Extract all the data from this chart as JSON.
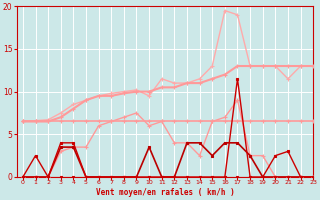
{
  "xlabel": "Vent moyen/en rafales ( km/h )",
  "xlabel_color": "#cc0000",
  "background_color": "#cce8e8",
  "grid_color": "#ffffff",
  "xlim": [
    -0.5,
    23
  ],
  "ylim": [
    0,
    20
  ],
  "yticks": [
    0,
    5,
    10,
    15,
    20
  ],
  "xticks": [
    0,
    1,
    2,
    3,
    4,
    5,
    6,
    7,
    8,
    9,
    10,
    11,
    12,
    13,
    14,
    15,
    16,
    17,
    18,
    19,
    20,
    21,
    22,
    23
  ],
  "series": [
    {
      "x": [
        0,
        1,
        2,
        3,
        4,
        5,
        6,
        7,
        8,
        9,
        10,
        11,
        12,
        13,
        14,
        15,
        16,
        17,
        18,
        19,
        20,
        21,
        22,
        23
      ],
      "y": [
        0,
        0,
        0,
        0,
        0,
        0,
        0,
        0,
        0,
        0,
        0,
        0,
        0,
        0,
        0,
        0,
        0,
        0,
        0,
        0,
        0,
        0,
        0,
        0
      ],
      "color": "#cc0000",
      "lw": 0.8,
      "marker": "s",
      "ms": 1.8,
      "zorder": 5
    },
    {
      "x": [
        0,
        1,
        2,
        3,
        4,
        5,
        6,
        7,
        8,
        9,
        10,
        11,
        12,
        13,
        14,
        15,
        16,
        17,
        18,
        19,
        20,
        21,
        22,
        23
      ],
      "y": [
        0,
        2.5,
        0,
        4,
        4,
        0,
        0,
        0,
        0,
        0,
        0,
        0,
        0,
        0,
        0,
        0,
        0,
        11.5,
        0,
        0,
        2.5,
        3,
        0,
        0
      ],
      "color": "#cc0000",
      "lw": 1.0,
      "marker": "s",
      "ms": 1.8,
      "zorder": 6
    },
    {
      "x": [
        0,
        1,
        2,
        3,
        4,
        5,
        6,
        7,
        8,
        9,
        10,
        11,
        12,
        13,
        14,
        15,
        16,
        17,
        18,
        19,
        20,
        21,
        22,
        23
      ],
      "y": [
        0,
        0,
        0,
        3.5,
        3.5,
        0,
        0,
        0,
        0,
        0,
        3.5,
        0,
        0,
        4,
        4,
        2.5,
        4,
        4,
        2.5,
        0,
        0,
        0,
        0,
        0
      ],
      "color": "#bb0000",
      "lw": 1.2,
      "marker": "s",
      "ms": 1.8,
      "zorder": 4
    },
    {
      "x": [
        0,
        1,
        2,
        3,
        4,
        5,
        6,
        7,
        8,
        9,
        10,
        11,
        12,
        13,
        14,
        15,
        16,
        17,
        18,
        19,
        20,
        21,
        22,
        23
      ],
      "y": [
        6.5,
        6.6,
        6.7,
        7.5,
        8.5,
        9.0,
        9.5,
        9.8,
        10.0,
        10.2,
        9.5,
        11.5,
        11.0,
        11.0,
        11.5,
        13.0,
        19.5,
        19.0,
        13.0,
        13.0,
        13.0,
        11.5,
        13.0,
        13.0
      ],
      "color": "#ffaaaa",
      "lw": 1.0,
      "marker": "+",
      "ms": 3.5,
      "zorder": 2
    },
    {
      "x": [
        0,
        1,
        2,
        3,
        4,
        5,
        6,
        7,
        8,
        9,
        10,
        11,
        12,
        13,
        14,
        15,
        16,
        17,
        18,
        19,
        20,
        21,
        22,
        23
      ],
      "y": [
        6.5,
        6.5,
        6.5,
        7.0,
        8.0,
        9.0,
        9.5,
        9.5,
        9.8,
        10.0,
        10.0,
        10.5,
        10.5,
        11.0,
        11.0,
        11.5,
        12.0,
        13.0,
        13.0,
        13.0,
        13.0,
        13.0,
        13.0,
        13.0
      ],
      "color": "#ff9999",
      "lw": 1.5,
      "marker": "+",
      "ms": 3.0,
      "zorder": 3
    },
    {
      "x": [
        0,
        1,
        2,
        3,
        4,
        5,
        6,
        7,
        8,
        9,
        10,
        11,
        12,
        13,
        14,
        15,
        16,
        17,
        18,
        19,
        20,
        21,
        22,
        23
      ],
      "y": [
        6.5,
        6.5,
        6.5,
        6.5,
        6.5,
        6.5,
        6.5,
        6.5,
        6.5,
        6.5,
        6.5,
        6.5,
        6.5,
        6.5,
        6.5,
        6.5,
        6.5,
        6.5,
        6.5,
        6.5,
        6.5,
        6.5,
        6.5,
        6.5
      ],
      "color": "#ff9999",
      "lw": 1.2,
      "marker": "+",
      "ms": 3.0,
      "zorder": 3
    },
    {
      "x": [
        0,
        1,
        2,
        3,
        4,
        5,
        6,
        7,
        8,
        9,
        10,
        11,
        12,
        13,
        14,
        15,
        16,
        17,
        18,
        19,
        20,
        21,
        22,
        23
      ],
      "y": [
        0,
        0,
        0,
        3.0,
        3.5,
        3.5,
        6.0,
        6.5,
        7.0,
        7.5,
        6.0,
        6.5,
        4.0,
        4.0,
        2.5,
        6.5,
        7.0,
        9.0,
        2.5,
        2.5,
        0,
        0,
        0,
        0
      ],
      "color": "#ff9999",
      "lw": 1.0,
      "marker": "+",
      "ms": 3.0,
      "zorder": 3
    }
  ]
}
